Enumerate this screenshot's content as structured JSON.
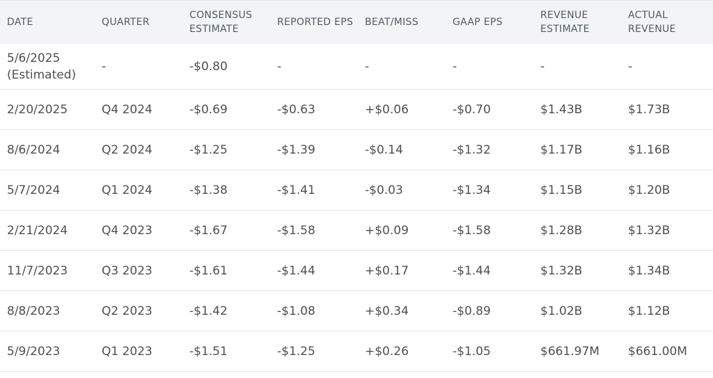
{
  "columns": [
    "DATE",
    "QUARTER",
    "CONSENSUS ESTIMATE",
    "REPORTED EPS",
    "BEAT/MISS",
    "GAAP EPS",
    "REVENUE ESTIMATE",
    "ACTUAL REVENUE"
  ],
  "colors": {
    "beat": "#2e8b3d",
    "miss": "#d4343b",
    "header_bg": "#f3f4f6"
  },
  "rows": [
    {
      "date": "5/6/2025 (Estimated)",
      "quarter": "-",
      "consensus": "-$0.80",
      "reported": "-",
      "beat_miss": "-",
      "beat_status": "none",
      "gaap": "-",
      "rev_est": "-",
      "rev_actual": "-"
    },
    {
      "date": "2/20/2025",
      "quarter": "Q4 2024",
      "consensus": "-$0.69",
      "reported": "-$0.63",
      "beat_miss": "+$0.06",
      "beat_status": "beat",
      "gaap": "-$0.70",
      "rev_est": "$1.43B",
      "rev_actual": "$1.73B"
    },
    {
      "date": "8/6/2024",
      "quarter": "Q2 2024",
      "consensus": "-$1.25",
      "reported": "-$1.39",
      "beat_miss": "-$0.14",
      "beat_status": "miss",
      "gaap": "-$1.32",
      "rev_est": "$1.17B",
      "rev_actual": "$1.16B"
    },
    {
      "date": "5/7/2024",
      "quarter": "Q1 2024",
      "consensus": "-$1.38",
      "reported": "-$1.41",
      "beat_miss": "-$0.03",
      "beat_status": "miss",
      "gaap": "-$1.34",
      "rev_est": "$1.15B",
      "rev_actual": "$1.20B"
    },
    {
      "date": "2/21/2024",
      "quarter": "Q4 2023",
      "consensus": "-$1.67",
      "reported": "-$1.58",
      "beat_miss": "+$0.09",
      "beat_status": "beat",
      "gaap": "-$1.58",
      "rev_est": "$1.28B",
      "rev_actual": "$1.32B"
    },
    {
      "date": "11/7/2023",
      "quarter": "Q3 2023",
      "consensus": "-$1.61",
      "reported": "-$1.44",
      "beat_miss": "+$0.17",
      "beat_status": "beat",
      "gaap": "-$1.44",
      "rev_est": "$1.32B",
      "rev_actual": "$1.34B"
    },
    {
      "date": "8/8/2023",
      "quarter": "Q2 2023",
      "consensus": "-$1.42",
      "reported": "-$1.08",
      "beat_miss": "+$0.34",
      "beat_status": "beat",
      "gaap": "-$0.89",
      "rev_est": "$1.02B",
      "rev_actual": "$1.12B"
    },
    {
      "date": "5/9/2023",
      "quarter": "Q1 2023",
      "consensus": "-$1.51",
      "reported": "-$1.25",
      "beat_miss": "+$0.26",
      "beat_status": "beat",
      "gaap": "-$1.05",
      "rev_est": "$661.97M",
      "rev_actual": "$661.00M"
    }
  ]
}
